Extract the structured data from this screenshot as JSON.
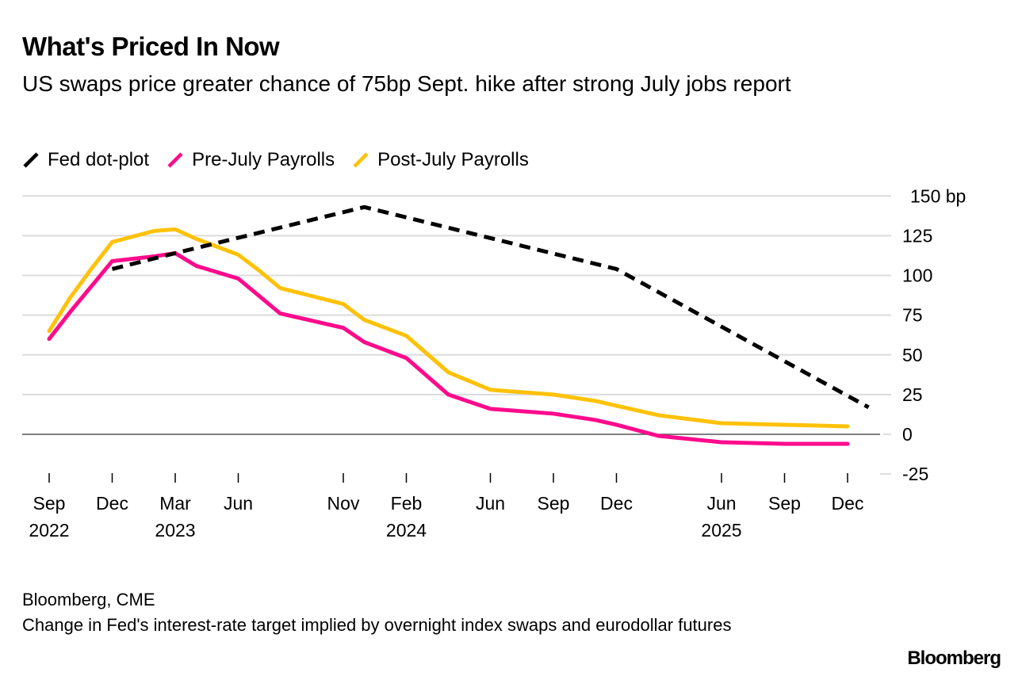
{
  "header": {
    "title": "What's Priced In Now",
    "subtitle": "US swaps price greater chance of 75bp Sept. hike after strong July jobs report"
  },
  "footer": {
    "source": "Bloomberg, CME",
    "note": "Change in Fed's interest-rate target implied by overnight index swaps and eurodollar futures",
    "logo": "Bloomberg"
  },
  "chart_data": {
    "type": "line",
    "title": "What's Priced In Now",
    "subtitle": "US swaps price greater chance of 75bp Sept. hike after strong July jobs report",
    "xlabel": "",
    "ylabel": "bp",
    "y_axis_position": "right",
    "ylim": [
      -25,
      150
    ],
    "y_ticks": [
      150,
      125,
      100,
      75,
      50,
      25,
      0,
      -25
    ],
    "y_tick_labels": [
      "150 bp",
      "125",
      "100",
      "75",
      "50",
      "25",
      "0",
      "-25"
    ],
    "grid": true,
    "legend_position": "top-left",
    "x_unit": "months since Sep 2022",
    "x_ticks": [
      {
        "m": 0,
        "label": "Sep",
        "year": "2022"
      },
      {
        "m": 3,
        "label": "Dec",
        "year": ""
      },
      {
        "m": 6,
        "label": "Mar",
        "year": "2023"
      },
      {
        "m": 9,
        "label": "Jun",
        "year": ""
      },
      {
        "m": 14,
        "label": "Nov",
        "year": ""
      },
      {
        "m": 17,
        "label": "Feb",
        "year": "2024"
      },
      {
        "m": 21,
        "label": "Jun",
        "year": ""
      },
      {
        "m": 24,
        "label": "Sep",
        "year": ""
      },
      {
        "m": 27,
        "label": "Dec",
        "year": ""
      },
      {
        "m": 32,
        "label": "Jun",
        "year": "2025"
      },
      {
        "m": 35,
        "label": "Sep",
        "year": ""
      },
      {
        "m": 38,
        "label": "Dec",
        "year": ""
      }
    ],
    "xlim": [
      0,
      38
    ],
    "series": [
      {
        "name": "Fed dot-plot",
        "color": "#000000",
        "style": "dashed",
        "x": [
          3,
          6,
          15,
          27,
          39
        ],
        "values": [
          104,
          114,
          143,
          104,
          17
        ]
      },
      {
        "name": "Pre-July Payrolls",
        "color": "#ff0a8c",
        "style": "solid",
        "x": [
          0,
          1,
          2,
          3,
          5,
          6,
          7,
          9,
          10,
          11,
          14,
          15,
          17,
          19,
          21,
          24,
          26,
          27,
          29,
          32,
          35,
          38
        ],
        "values": [
          60,
          77,
          93,
          109,
          112,
          114,
          106,
          98,
          87,
          76,
          67,
          58,
          48,
          25,
          16,
          13,
          9,
          6,
          -1,
          -5,
          -6,
          -6
        ]
      },
      {
        "name": "Post-July Payrolls",
        "color": "#ffc20a",
        "style": "solid",
        "x": [
          0,
          1,
          2,
          3,
          5,
          6,
          7,
          9,
          10,
          11,
          14,
          15,
          17,
          19,
          21,
          24,
          26,
          27,
          29,
          32,
          35,
          38
        ],
        "values": [
          65,
          86,
          104,
          121,
          128,
          129,
          123,
          113,
          103,
          92,
          82,
          72,
          62,
          39,
          28,
          25,
          21,
          18,
          12,
          7,
          6,
          5
        ]
      }
    ]
  }
}
